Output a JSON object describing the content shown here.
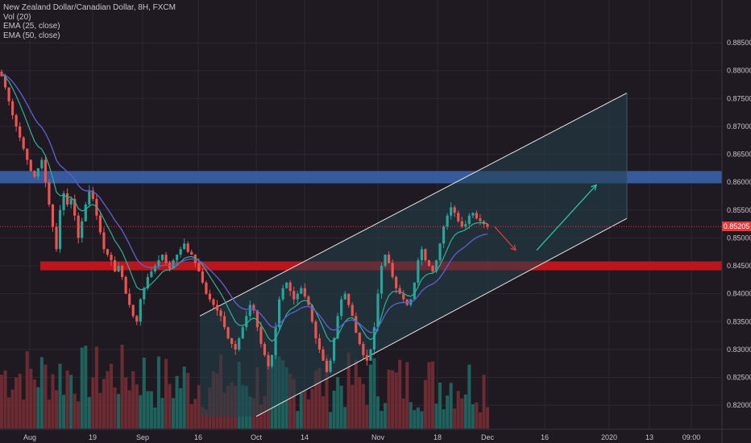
{
  "legend": {
    "symbol": "New Zealand Dollar/Canadian Dollar, 8H, FXCM",
    "vol": "Vol (20)",
    "ema25": "EMA (25, close)",
    "ema50": "EMA (50, close)"
  },
  "current_price": "0.85205",
  "colors": {
    "background": "#1f1a22",
    "grid": "#2d2730",
    "up_candle": "#26a69a",
    "down_candle": "#ef5350",
    "vol_up": "#1f6e67",
    "vol_down": "#7a2f35",
    "ema25": "#2bb39a",
    "ema50": "#5a5fc8",
    "resistance_zone": "#3a5fa8",
    "support_zone": "#c8161d",
    "channel_fill": "#23414a",
    "arrow_down": "#e23b3b",
    "arrow_up": "#23c9a7",
    "axis_text": "#c8c3c8"
  },
  "chart_data": {
    "type": "candlestick",
    "symbol": "NZDCAD",
    "timeframe": "8H",
    "ylim": [
      0.818,
      0.8905
    ],
    "y_ticks": [
      "0.88500",
      "0.88000",
      "0.87500",
      "0.87000",
      "0.86500",
      "0.86000",
      "0.85500",
      "0.85000",
      "0.84500",
      "0.84000",
      "0.83500",
      "0.83000",
      "0.82500",
      "0.82000"
    ],
    "x_ticks": [
      "Aug",
      "19",
      "Sep",
      "16",
      "Oct",
      "14",
      "Nov",
      "18",
      "Dec",
      "16",
      "2020",
      "13",
      "09:00"
    ],
    "resistance_zone": [
      0.8598,
      0.862
    ],
    "support_zone": [
      0.8442,
      0.8458
    ],
    "channel": {
      "upper": [
        {
          "x": "Sep 16",
          "y": 0.836
        },
        {
          "x": "Jan 9",
          "y": 0.876
        }
      ],
      "lower": [
        {
          "x": "Oct 1",
          "y": 0.818
        },
        {
          "x": "Jan 9",
          "y": 0.8535
        }
      ]
    },
    "projection": [
      {
        "from": 0.852,
        "to": 0.8478,
        "direction": "down"
      },
      {
        "from": 0.8478,
        "to": 0.8595,
        "direction": "up"
      }
    ],
    "closes": [
      0.879,
      0.877,
      0.8745,
      0.872,
      0.87,
      0.868,
      0.866,
      0.864,
      0.862,
      0.861,
      0.8625,
      0.864,
      0.86,
      0.856,
      0.852,
      0.848,
      0.855,
      0.858,
      0.856,
      0.857,
      0.854,
      0.85,
      0.853,
      0.856,
      0.8585,
      0.857,
      0.854,
      0.851,
      0.848,
      0.847,
      0.846,
      0.844,
      0.845,
      0.843,
      0.84,
      0.838,
      0.836,
      0.835,
      0.839,
      0.841,
      0.843,
      0.844,
      0.845,
      0.846,
      0.847,
      0.8455,
      0.8445,
      0.846,
      0.847,
      0.848,
      0.849,
      0.8475,
      0.847,
      0.8455,
      0.844,
      0.842,
      0.84,
      0.839,
      0.838,
      0.837,
      0.836,
      0.834,
      0.832,
      0.831,
      0.83,
      0.832,
      0.834,
      0.836,
      0.838,
      0.837,
      0.834,
      0.831,
      0.829,
      0.827,
      0.829,
      0.834,
      0.839,
      0.841,
      0.842,
      0.8405,
      0.839,
      0.84,
      0.841,
      0.8395,
      0.838,
      0.835,
      0.832,
      0.83,
      0.828,
      0.826,
      0.828,
      0.832,
      0.836,
      0.839,
      0.84,
      0.838,
      0.836,
      0.833,
      0.831,
      0.829,
      0.828,
      0.83,
      0.834,
      0.84,
      0.845,
      0.847,
      0.8455,
      0.843,
      0.841,
      0.84,
      0.839,
      0.838,
      0.839,
      0.842,
      0.846,
      0.848,
      0.846,
      0.845,
      0.844,
      0.846,
      0.849,
      0.852,
      0.854,
      0.8555,
      0.8545,
      0.853,
      0.852,
      0.8525,
      0.854,
      0.8545,
      0.8535,
      0.853,
      0.8525,
      0.852
    ]
  }
}
